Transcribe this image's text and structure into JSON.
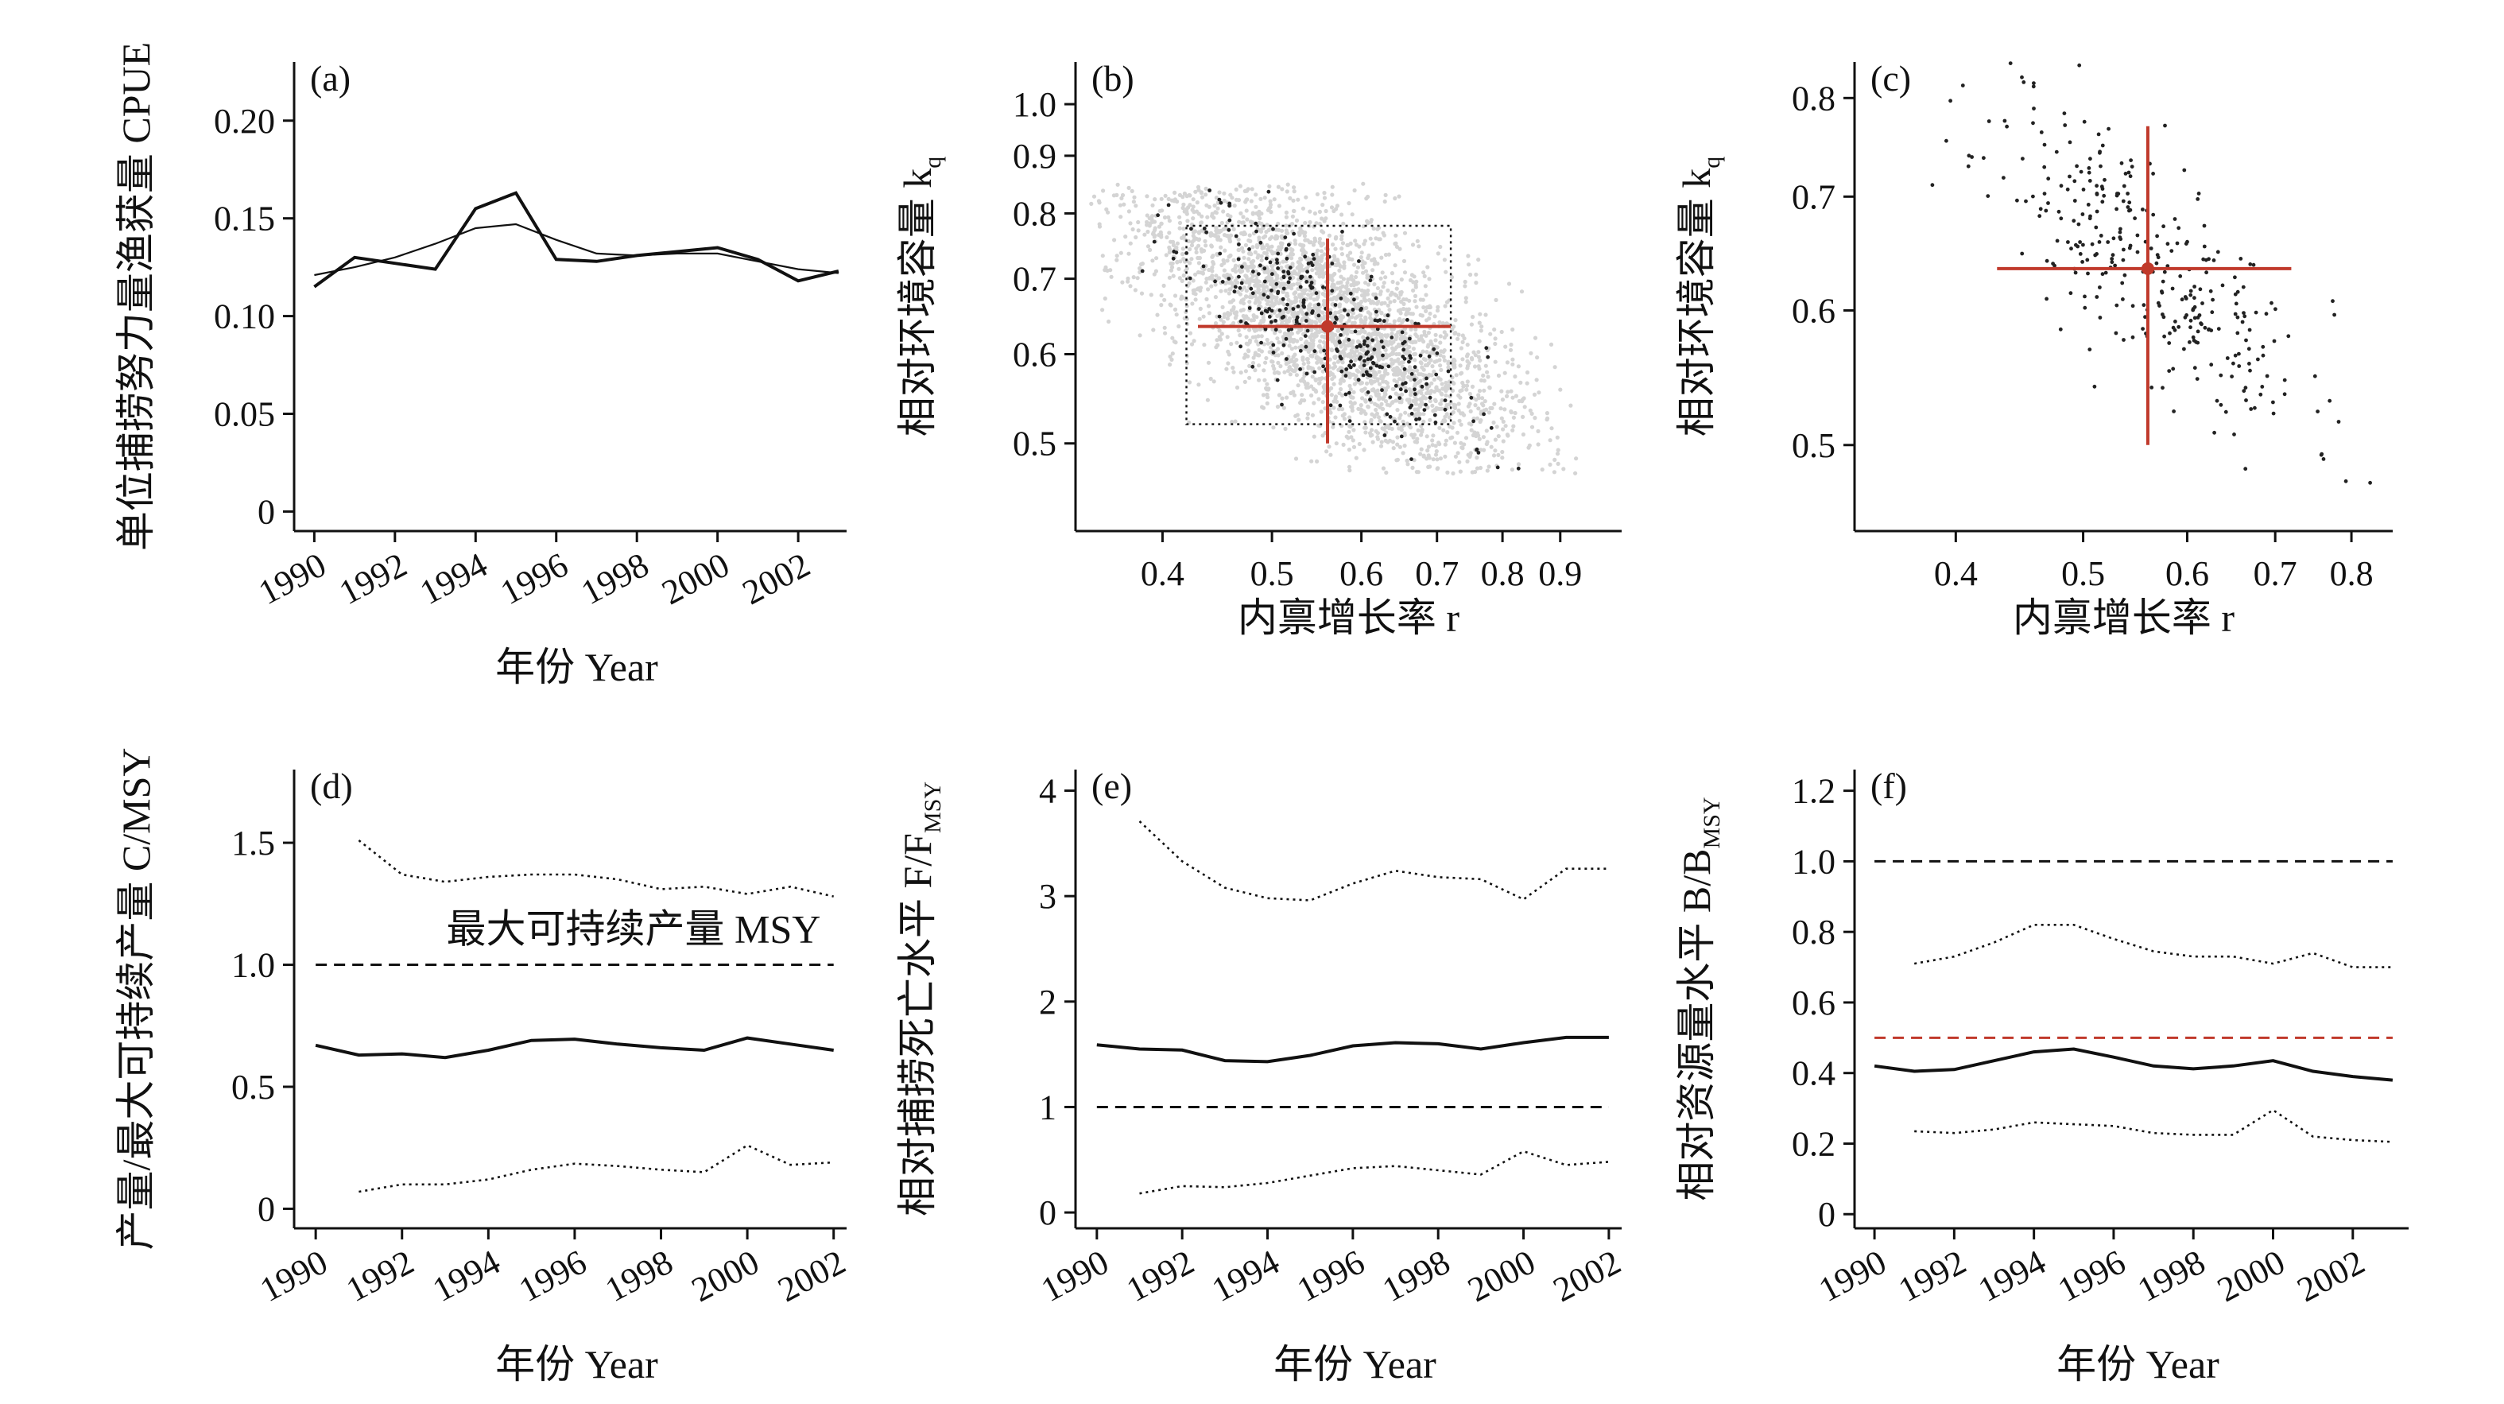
{
  "chart_data": [
    {
      "type": "line",
      "panel_label": "(a)",
      "ylabel": "单位捕捞努力量渔获量 CPUE",
      "xlabel": "年份 Year",
      "xlim": [
        1989.5,
        2003.2
      ],
      "ylim": [
        -0.01,
        0.23
      ],
      "xticks": [
        1990,
        1992,
        1994,
        1996,
        1998,
        2000,
        2002
      ],
      "xtick_labels": [
        "1990",
        "1992",
        "1994",
        "1996",
        "1998",
        "2000",
        "2002"
      ],
      "yticks": [
        0,
        0.05,
        0.1,
        0.15,
        0.2
      ],
      "ytick_labels": [
        "0",
        "0.05",
        "0.10",
        "0.15",
        "0.20"
      ],
      "series": [
        {
          "name": "observed",
          "style": "solid-thick",
          "x": [
            1990,
            1991,
            1992,
            1993,
            1994,
            1995,
            1996,
            1997,
            1998,
            1999,
            2000,
            2001,
            2002,
            2003
          ],
          "values": [
            0.115,
            0.13,
            0.127,
            0.124,
            0.155,
            0.163,
            0.129,
            0.128,
            0.131,
            0.133,
            0.135,
            0.129,
            0.118,
            0.123
          ]
        },
        {
          "name": "fitted",
          "style": "solid-thin",
          "x": [
            1990,
            1991,
            1992,
            1993,
            1994,
            1995,
            1996,
            1997,
            1998,
            1999,
            2000,
            2001,
            2002,
            2003
          ],
          "values": [
            0.121,
            0.125,
            0.13,
            0.137,
            0.145,
            0.147,
            0.139,
            0.132,
            0.131,
            0.132,
            0.132,
            0.128,
            0.124,
            0.122
          ]
        }
      ]
    },
    {
      "type": "scatter",
      "panel_label": "(b)",
      "ylabel": "相对环境容量 k",
      "ylabel_sub": "q",
      "xlabel": "内禀增长率 r",
      "xscale": "log",
      "yscale": "log",
      "xlim": [
        0.335,
        1.02
      ],
      "ylim": [
        0.418,
        1.09
      ],
      "xticks": [
        0.4,
        0.5,
        0.6,
        0.7,
        0.8,
        0.9
      ],
      "xtick_labels": [
        "0.4",
        "0.5",
        "0.6",
        "0.7",
        "0.8",
        "0.9"
      ],
      "yticks": [
        0.5,
        0.6,
        0.7,
        0.8,
        0.9,
        1.0
      ],
      "ytick_labels": [
        "0.5",
        "0.6",
        "0.7",
        "0.8",
        "0.9",
        "1.0"
      ],
      "prior_box": {
        "r": [
          0.42,
          0.72
        ],
        "k": [
          0.52,
          0.78
        ]
      },
      "estimate": {
        "r": 0.56,
        "k": 0.635
      },
      "r_interval": [
        0.43,
        0.72
      ],
      "k_interval": [
        0.5,
        0.76
      ],
      "cloud_note": "light grey cloud of tested r-k pairs; dark points are viable pairs"
    },
    {
      "type": "scatter",
      "panel_label": "(c)",
      "ylabel": "相对环境容量 k",
      "ylabel_sub": "q",
      "xlabel": "内禀增长率 r",
      "xscale": "log",
      "yscale": "log",
      "xlim": [
        0.335,
        0.86
      ],
      "ylim": [
        0.445,
        0.84
      ],
      "xticks": [
        0.4,
        0.5,
        0.6,
        0.7,
        0.8
      ],
      "xtick_labels": [
        "0.4",
        "0.5",
        "0.6",
        "0.7",
        "0.8"
      ],
      "yticks": [
        0.5,
        0.6,
        0.7,
        0.8
      ],
      "ytick_labels": [
        "0.5",
        "0.6",
        "0.7",
        "0.8"
      ],
      "estimate": {
        "r": 0.56,
        "k": 0.635
      },
      "r_interval": [
        0.43,
        0.72
      ],
      "k_interval": [
        0.5,
        0.77
      ]
    },
    {
      "type": "line",
      "panel_label": "(d)",
      "ylabel": "产量/最大可持续产量 C/MSY",
      "xlabel": "年份 Year",
      "annotation": "最大可持续产量 MSY",
      "xlim": [
        1989.5,
        2002.3
      ],
      "ylim": [
        -0.08,
        1.8
      ],
      "xticks": [
        1990,
        1992,
        1994,
        1996,
        1998,
        2000,
        2002
      ],
      "xtick_labels": [
        "1990",
        "1992",
        "1994",
        "1996",
        "1998",
        "2000",
        "2002"
      ],
      "yticks": [
        0,
        0.5,
        1.0,
        1.5
      ],
      "ytick_labels": [
        "0",
        "0.5",
        "1.0",
        "1.5"
      ],
      "reference_lines": [
        {
          "y": 1.0,
          "style": "dashed",
          "color": "#111111"
        }
      ],
      "series": [
        {
          "name": "median",
          "style": "solid",
          "x": [
            1990,
            1991,
            1992,
            1993,
            1994,
            1995,
            1996,
            1997,
            1998,
            1999,
            2000,
            2001,
            2002
          ],
          "values": [
            0.67,
            0.63,
            0.635,
            0.62,
            0.65,
            0.69,
            0.695,
            0.675,
            0.66,
            0.65,
            0.7,
            0.675,
            0.65
          ]
        },
        {
          "name": "upper",
          "style": "dotted",
          "x": [
            1991,
            1992,
            1993,
            1994,
            1995,
            1996,
            1997,
            1998,
            1999,
            2000,
            2001,
            2002
          ],
          "values": [
            1.51,
            1.37,
            1.34,
            1.36,
            1.37,
            1.37,
            1.35,
            1.31,
            1.32,
            1.29,
            1.32,
            1.28
          ]
        },
        {
          "name": "lower",
          "style": "dotted",
          "x": [
            1991,
            1992,
            1993,
            1994,
            1995,
            1996,
            1997,
            1998,
            1999,
            2000,
            2001,
            2002
          ],
          "values": [
            0.07,
            0.1,
            0.1,
            0.12,
            0.16,
            0.185,
            0.175,
            0.16,
            0.15,
            0.26,
            0.18,
            0.19
          ]
        }
      ]
    },
    {
      "type": "line",
      "panel_label": "(e)",
      "ylabel": "相对捕捞死亡水平 F/F",
      "ylabel_sub": "MSY",
      "xlabel": "年份 Year",
      "xlim": [
        1989.5,
        2002.3
      ],
      "ylim": [
        -0.15,
        4.2
      ],
      "xticks": [
        1990,
        1992,
        1994,
        1996,
        1998,
        2000,
        2002
      ],
      "xtick_labels": [
        "1990",
        "1992",
        "1994",
        "1996",
        "1998",
        "2000",
        "2002"
      ],
      "yticks": [
        0,
        1,
        2,
        3,
        4
      ],
      "ytick_labels": [
        "0",
        "1",
        "2",
        "3",
        "4"
      ],
      "reference_lines": [
        {
          "y": 1.0,
          "style": "dashed",
          "color": "#111111"
        }
      ],
      "series": [
        {
          "name": "median",
          "style": "solid",
          "x": [
            1990,
            1991,
            1992,
            1993,
            1994,
            1995,
            1996,
            1997,
            1998,
            1999,
            2000,
            2001,
            2002
          ],
          "values": [
            1.59,
            1.55,
            1.54,
            1.44,
            1.43,
            1.49,
            1.58,
            1.61,
            1.6,
            1.55,
            1.61,
            1.66,
            1.66
          ]
        },
        {
          "name": "upper",
          "style": "dotted",
          "x": [
            1991,
            1992,
            1993,
            1994,
            1995,
            1996,
            1997,
            1998,
            1999,
            2000,
            2001,
            2002
          ],
          "values": [
            3.71,
            3.33,
            3.08,
            2.98,
            2.96,
            3.12,
            3.24,
            3.18,
            3.16,
            2.97,
            3.26,
            3.26
          ]
        },
        {
          "name": "lower",
          "style": "dotted",
          "x": [
            1991,
            1992,
            1993,
            1994,
            1995,
            1996,
            1997,
            1998,
            1999,
            2000,
            2001,
            2002
          ],
          "values": [
            0.18,
            0.25,
            0.24,
            0.28,
            0.35,
            0.42,
            0.44,
            0.4,
            0.36,
            0.58,
            0.45,
            0.48
          ]
        }
      ]
    },
    {
      "type": "line",
      "panel_label": "(f)",
      "ylabel": "相对资源量水平 B/B",
      "ylabel_sub": "MSY",
      "xlabel": "年份 Year",
      "xlim": [
        1989.5,
        2003.4
      ],
      "ylim": [
        -0.04,
        1.26
      ],
      "xticks": [
        1990,
        1992,
        1994,
        1996,
        1998,
        2000,
        2002
      ],
      "xtick_labels": [
        "1990",
        "1992",
        "1994",
        "1996",
        "1998",
        "2000",
        "2002"
      ],
      "yticks": [
        0,
        0.2,
        0.4,
        0.6,
        0.8,
        1.0,
        1.2
      ],
      "ytick_labels": [
        "0",
        "0.2",
        "0.4",
        "0.6",
        "0.8",
        "1.0",
        "1.2"
      ],
      "reference_lines": [
        {
          "y": 1.0,
          "style": "dashed",
          "color": "#111111"
        },
        {
          "y": 0.5,
          "style": "dashed",
          "color": "#c0392b"
        }
      ],
      "series": [
        {
          "name": "median",
          "style": "solid",
          "x": [
            1990,
            1991,
            1992,
            1993,
            1994,
            1995,
            1996,
            1997,
            1998,
            1999,
            2000,
            2001,
            2002,
            2003
          ],
          "values": [
            0.42,
            0.405,
            0.41,
            0.435,
            0.46,
            0.468,
            0.445,
            0.42,
            0.412,
            0.42,
            0.435,
            0.405,
            0.39,
            0.38
          ]
        },
        {
          "name": "upper",
          "style": "dotted",
          "x": [
            1991,
            1992,
            1993,
            1994,
            1995,
            1996,
            1997,
            1998,
            1999,
            2000,
            2001,
            2002,
            2003
          ],
          "values": [
            0.71,
            0.73,
            0.77,
            0.82,
            0.82,
            0.78,
            0.745,
            0.73,
            0.73,
            0.71,
            0.74,
            0.7,
            0.7
          ]
        },
        {
          "name": "lower",
          "style": "dotted",
          "x": [
            1991,
            1992,
            1993,
            1994,
            1995,
            1996,
            1997,
            1998,
            1999,
            2000,
            2001,
            2002,
            2003
          ],
          "values": [
            0.235,
            0.23,
            0.24,
            0.26,
            0.255,
            0.25,
            0.23,
            0.225,
            0.225,
            0.295,
            0.22,
            0.21,
            0.205
          ]
        }
      ]
    }
  ],
  "colors": {
    "ink": "#111111",
    "estimate_red": "#c0392b",
    "cloud_grey": "#d4d4d4",
    "point_dark": "#222222"
  }
}
